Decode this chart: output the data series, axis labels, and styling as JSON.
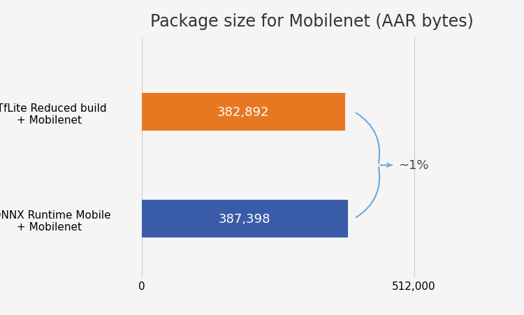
{
  "title": "Package size for Mobilenet (AAR bytes)",
  "categories": [
    "*TfLite Reduced build\n+ Mobilenet",
    "†ONNX Runtime Mobile\n+ Mobilenet"
  ],
  "values": [
    382892,
    387398
  ],
  "bar_colors": [
    "#E87722",
    "#3A5CA8"
  ],
  "bar_labels": [
    "382,892",
    "387,398"
  ],
  "xlim": [
    0,
    640000
  ],
  "xticks": [
    0,
    512000
  ],
  "xticklabels": [
    "0",
    "512,000"
  ],
  "annotation_text": "~1%",
  "background_color": "#f5f5f5",
  "title_fontsize": 17,
  "label_fontsize": 11,
  "bar_label_fontsize": 13,
  "tick_fontsize": 11,
  "annotation_fontsize": 13,
  "brace_color": "#6fa8dc",
  "grid_color": "#cccccc"
}
